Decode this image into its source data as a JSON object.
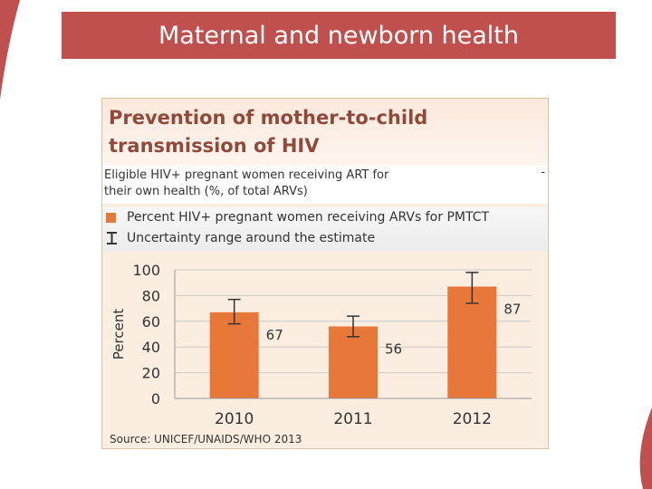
{
  "slide": {
    "title": "Maternal and newborn health"
  },
  "panel": {
    "title_line1": "Prevention of mother-to-child",
    "title_line2": "transmission of HIV",
    "art_label_line1": "Eligible HIV+ pregnant women receiving ART for",
    "art_label_line2": "their own health (%, of total ARVs)",
    "art_dash": "-",
    "source": "Source: UNICEF/UNAIDS/WHO 2013"
  },
  "legend": {
    "bar_label": "Percent HIV+ pregnant women receiving ARVs for PMTCT",
    "uncertainty_label": "Uncertainty range around the estimate"
  },
  "colors": {
    "bar": "#e8773a",
    "title_bar": "#c0504d",
    "panel_title": "#8f4a3c"
  },
  "chart_data": {
    "type": "bar",
    "title": "Prevention of mother-to-child transmission of HIV",
    "categories": [
      "2010",
      "2011",
      "2012"
    ],
    "values": [
      67,
      56,
      87
    ],
    "data_labels": [
      "67",
      "56",
      "87"
    ],
    "error_low": [
      58,
      48,
      74
    ],
    "error_high": [
      77,
      64,
      98
    ],
    "ylabel": "Percent",
    "xlabel": "",
    "ylim": [
      0,
      100
    ],
    "yticks": [
      0,
      20,
      40,
      60,
      80,
      100
    ],
    "ytick_labels": [
      "0",
      "20",
      "40",
      "60",
      "80",
      "100"
    ],
    "grid": true,
    "legend_position": "top"
  }
}
